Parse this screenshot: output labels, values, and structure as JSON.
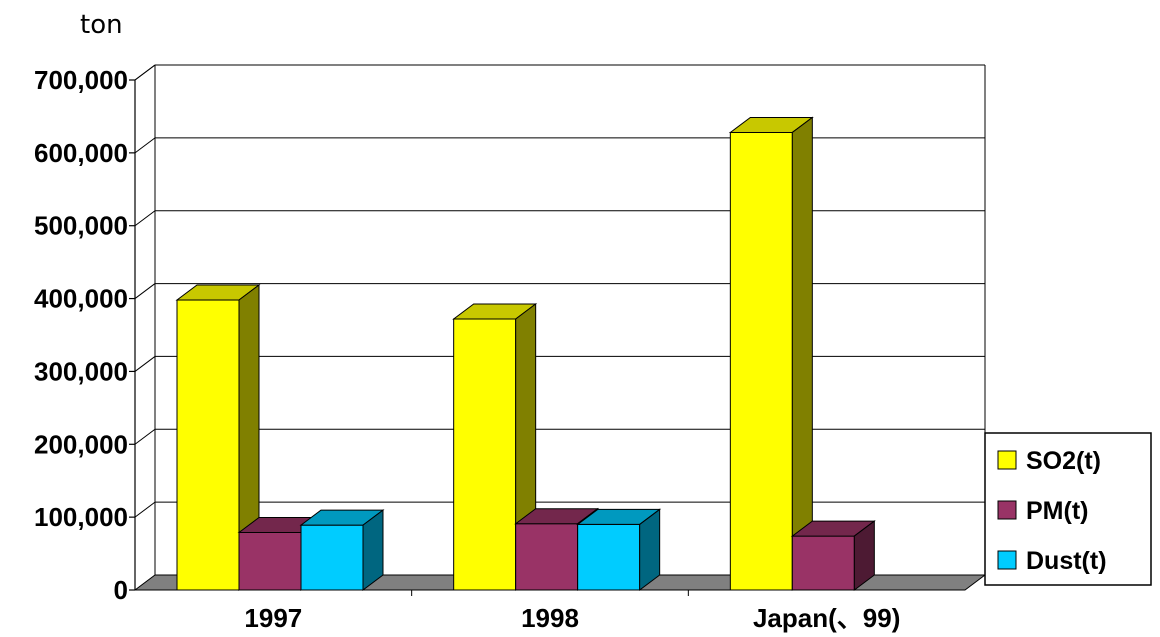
{
  "chart_data": {
    "type": "bar",
    "y_unit_label": "ton",
    "categories": [
      "1997",
      "1998",
      "Japan(、99)"
    ],
    "series": [
      {
        "name": "SO2(t)",
        "values": [
          398000,
          372000,
          628000
        ]
      },
      {
        "name": "PM(t)",
        "values": [
          79000,
          91000,
          74000
        ]
      },
      {
        "name": "Dust(t)",
        "values": [
          89000,
          90000,
          null
        ]
      }
    ],
    "ylim": [
      0,
      700000
    ],
    "yticks": [
      "0",
      "100,000",
      "200,000",
      "300,000",
      "400,000",
      "500,000",
      "600,000",
      "700,000"
    ],
    "grid": true,
    "legend_position": "right",
    "colors": {
      "SO2(t)": {
        "front": "#ffff00",
        "top": "#c8c800",
        "side": "#808000"
      },
      "PM(t)": {
        "front": "#993366",
        "top": "#73274c",
        "side": "#4d1a33"
      },
      "Dust(t)": {
        "front": "#00ccff",
        "top": "#0099bf",
        "side": "#006680"
      },
      "floor": "#808080",
      "grid": "#000000"
    }
  }
}
